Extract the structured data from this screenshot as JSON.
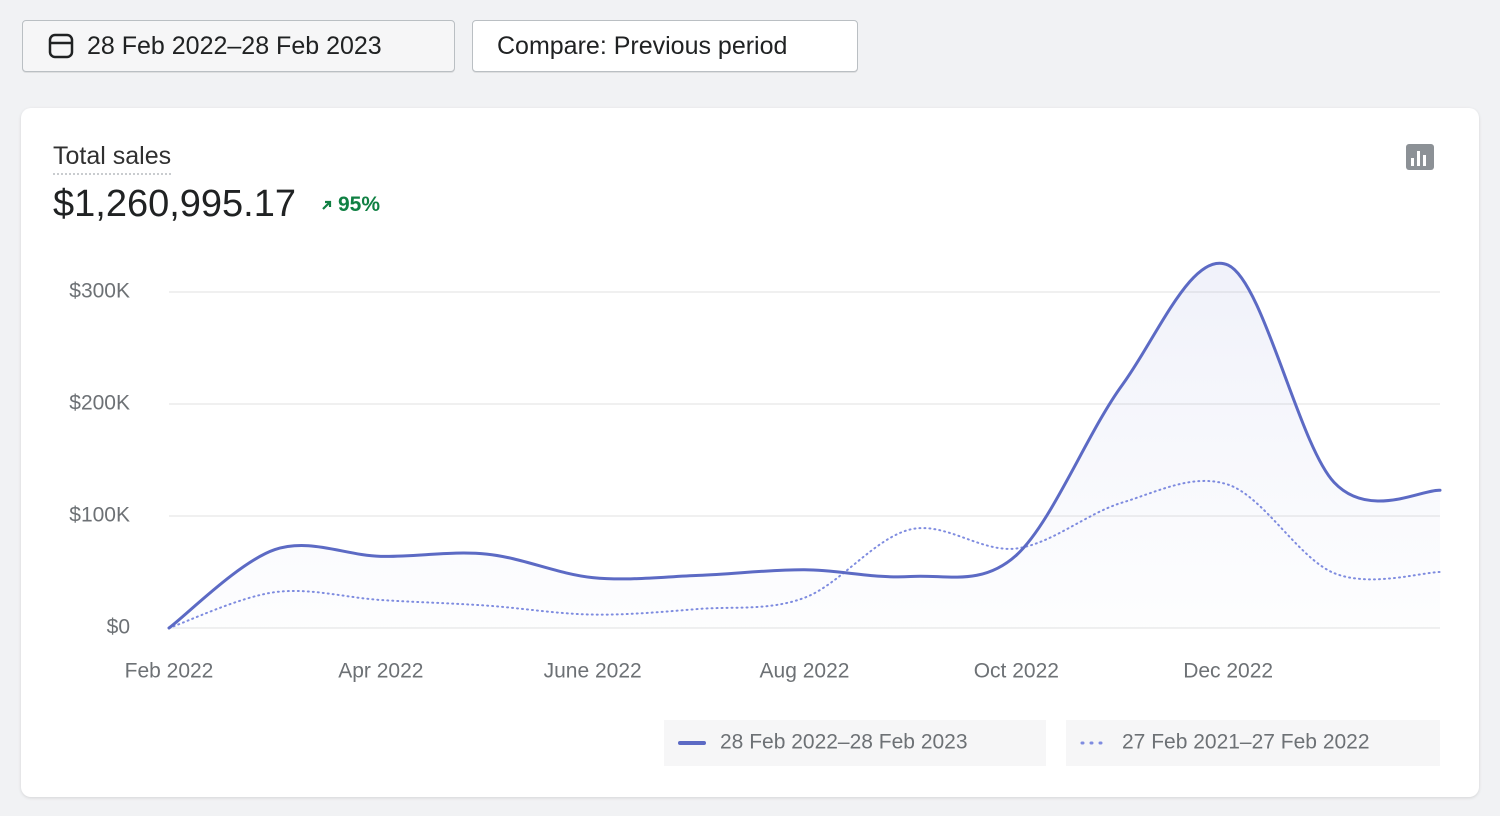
{
  "header": {
    "date_range": "28 Feb 2022–28 Feb 2023",
    "compare": "Compare: Previous period"
  },
  "card": {
    "title": "Total sales",
    "total": "$1,260,995.17",
    "change": "95%"
  },
  "chart_data": {
    "type": "line",
    "categories": [
      "Feb 2022",
      null,
      "Apr 2022",
      null,
      "June 2022",
      null,
      "Aug 2022",
      null,
      "Oct 2022",
      null,
      "Dec 2022",
      null,
      null
    ],
    "series": [
      {
        "name": "28 Feb 2022–28 Feb 2023",
        "color": "#5c6ac4",
        "style": "solid",
        "values": [
          0,
          70000,
          64000,
          66000,
          45000,
          47000,
          52000,
          46000,
          65000,
          217000,
          324000,
          130000,
          123000
        ]
      },
      {
        "name": "27 Feb 2021–27 Feb 2022",
        "color": "#7f8ce0",
        "style": "dotted",
        "values": [
          0,
          32000,
          25000,
          20000,
          12000,
          17000,
          27000,
          88000,
          71000,
          112000,
          128000,
          49000,
          50000
        ]
      }
    ],
    "ylim": [
      0,
      330000
    ],
    "yticks": [
      {
        "value": 0,
        "label": "$0"
      },
      {
        "value": 100000,
        "label": "$100K"
      },
      {
        "value": 200000,
        "label": "$200K"
      },
      {
        "value": 300000,
        "label": "$300K"
      }
    ],
    "grid": true
  }
}
